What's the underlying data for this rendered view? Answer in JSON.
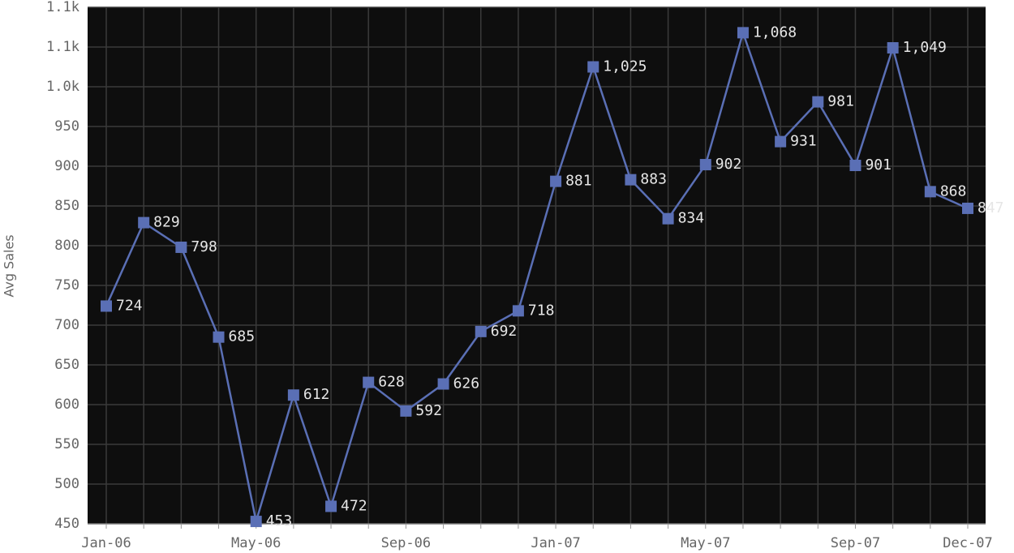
{
  "chart_data": {
    "type": "line",
    "y_label": "Avg Sales",
    "categories": [
      "Jan-06",
      null,
      null,
      null,
      "May-06",
      null,
      null,
      null,
      "Sep-06",
      null,
      null,
      null,
      "Jan-07",
      null,
      null,
      null,
      "May-07",
      null,
      null,
      null,
      "Sep-07",
      null,
      null,
      "Dec-07"
    ],
    "series": [
      {
        "name": "Avg Sales",
        "color": "#5a6fb5",
        "values": [
          724,
          829,
          798,
          685,
          453,
          612,
          472,
          628,
          592,
          626,
          692,
          718,
          881,
          1025,
          883,
          834,
          902,
          1068,
          931,
          981,
          901,
          1049,
          868,
          847
        ],
        "value_labels": [
          "724",
          "829",
          "798",
          "685",
          "453",
          "612",
          "472",
          "628",
          "592",
          "626",
          "692",
          "718",
          "881",
          "1,025",
          "883",
          "834",
          "902",
          "1,068",
          "931",
          "981",
          "901",
          "1,049",
          "868",
          "847"
        ]
      }
    ],
    "ylim": [
      450,
      1100
    ],
    "yticks": [
      450,
      500,
      550,
      600,
      650,
      700,
      750,
      800,
      850,
      900,
      950,
      {
        "value": 1000,
        "label": "1.0k"
      },
      {
        "value": 1050,
        "label": "1.1k"
      },
      {
        "value": 1100,
        "label": "1.1k"
      }
    ],
    "grid": true
  }
}
